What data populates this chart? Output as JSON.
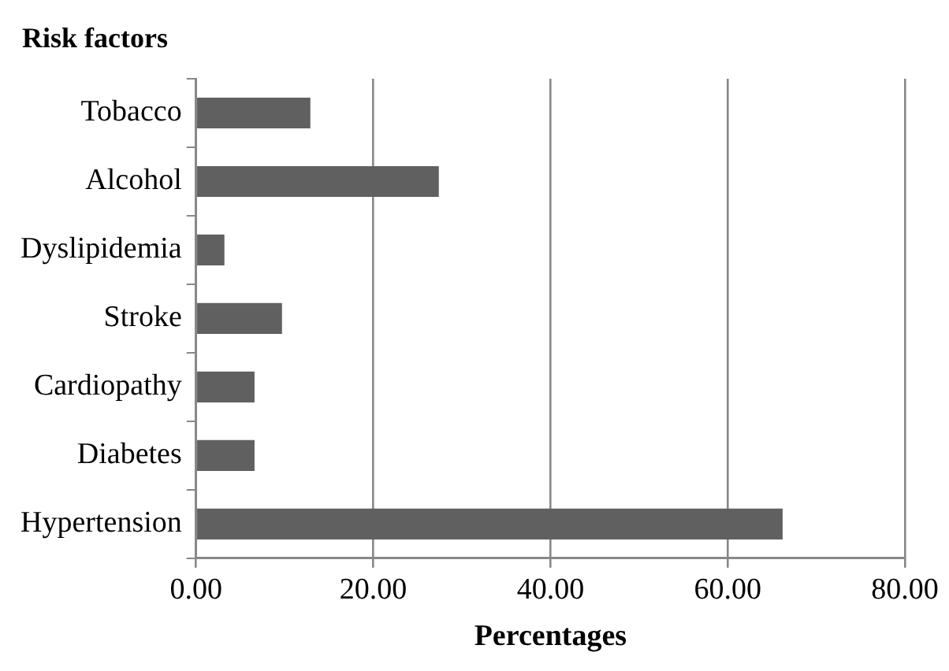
{
  "chart_data": {
    "type": "bar",
    "orientation": "horizontal",
    "title": "Risk factors",
    "xlabel": "Percentages",
    "categories": [
      "Tobacco",
      "Alcohol",
      "Dyslipidemia",
      "Stroke",
      "Cardiopathy",
      "Diabetes",
      "Hypertension"
    ],
    "values": [
      12.9,
      27.4,
      3.2,
      9.7,
      6.6,
      6.6,
      66.2
    ],
    "color": "#606060",
    "xlim": [
      0,
      80
    ],
    "xticks": [
      {
        "value": 0,
        "label": "0.00"
      },
      {
        "value": 20,
        "label": "20.00"
      },
      {
        "value": 40,
        "label": "40.00"
      },
      {
        "value": 60,
        "label": "60.00"
      },
      {
        "value": 80,
        "label": "80.00"
      }
    ],
    "grid": "x",
    "legend": false
  }
}
